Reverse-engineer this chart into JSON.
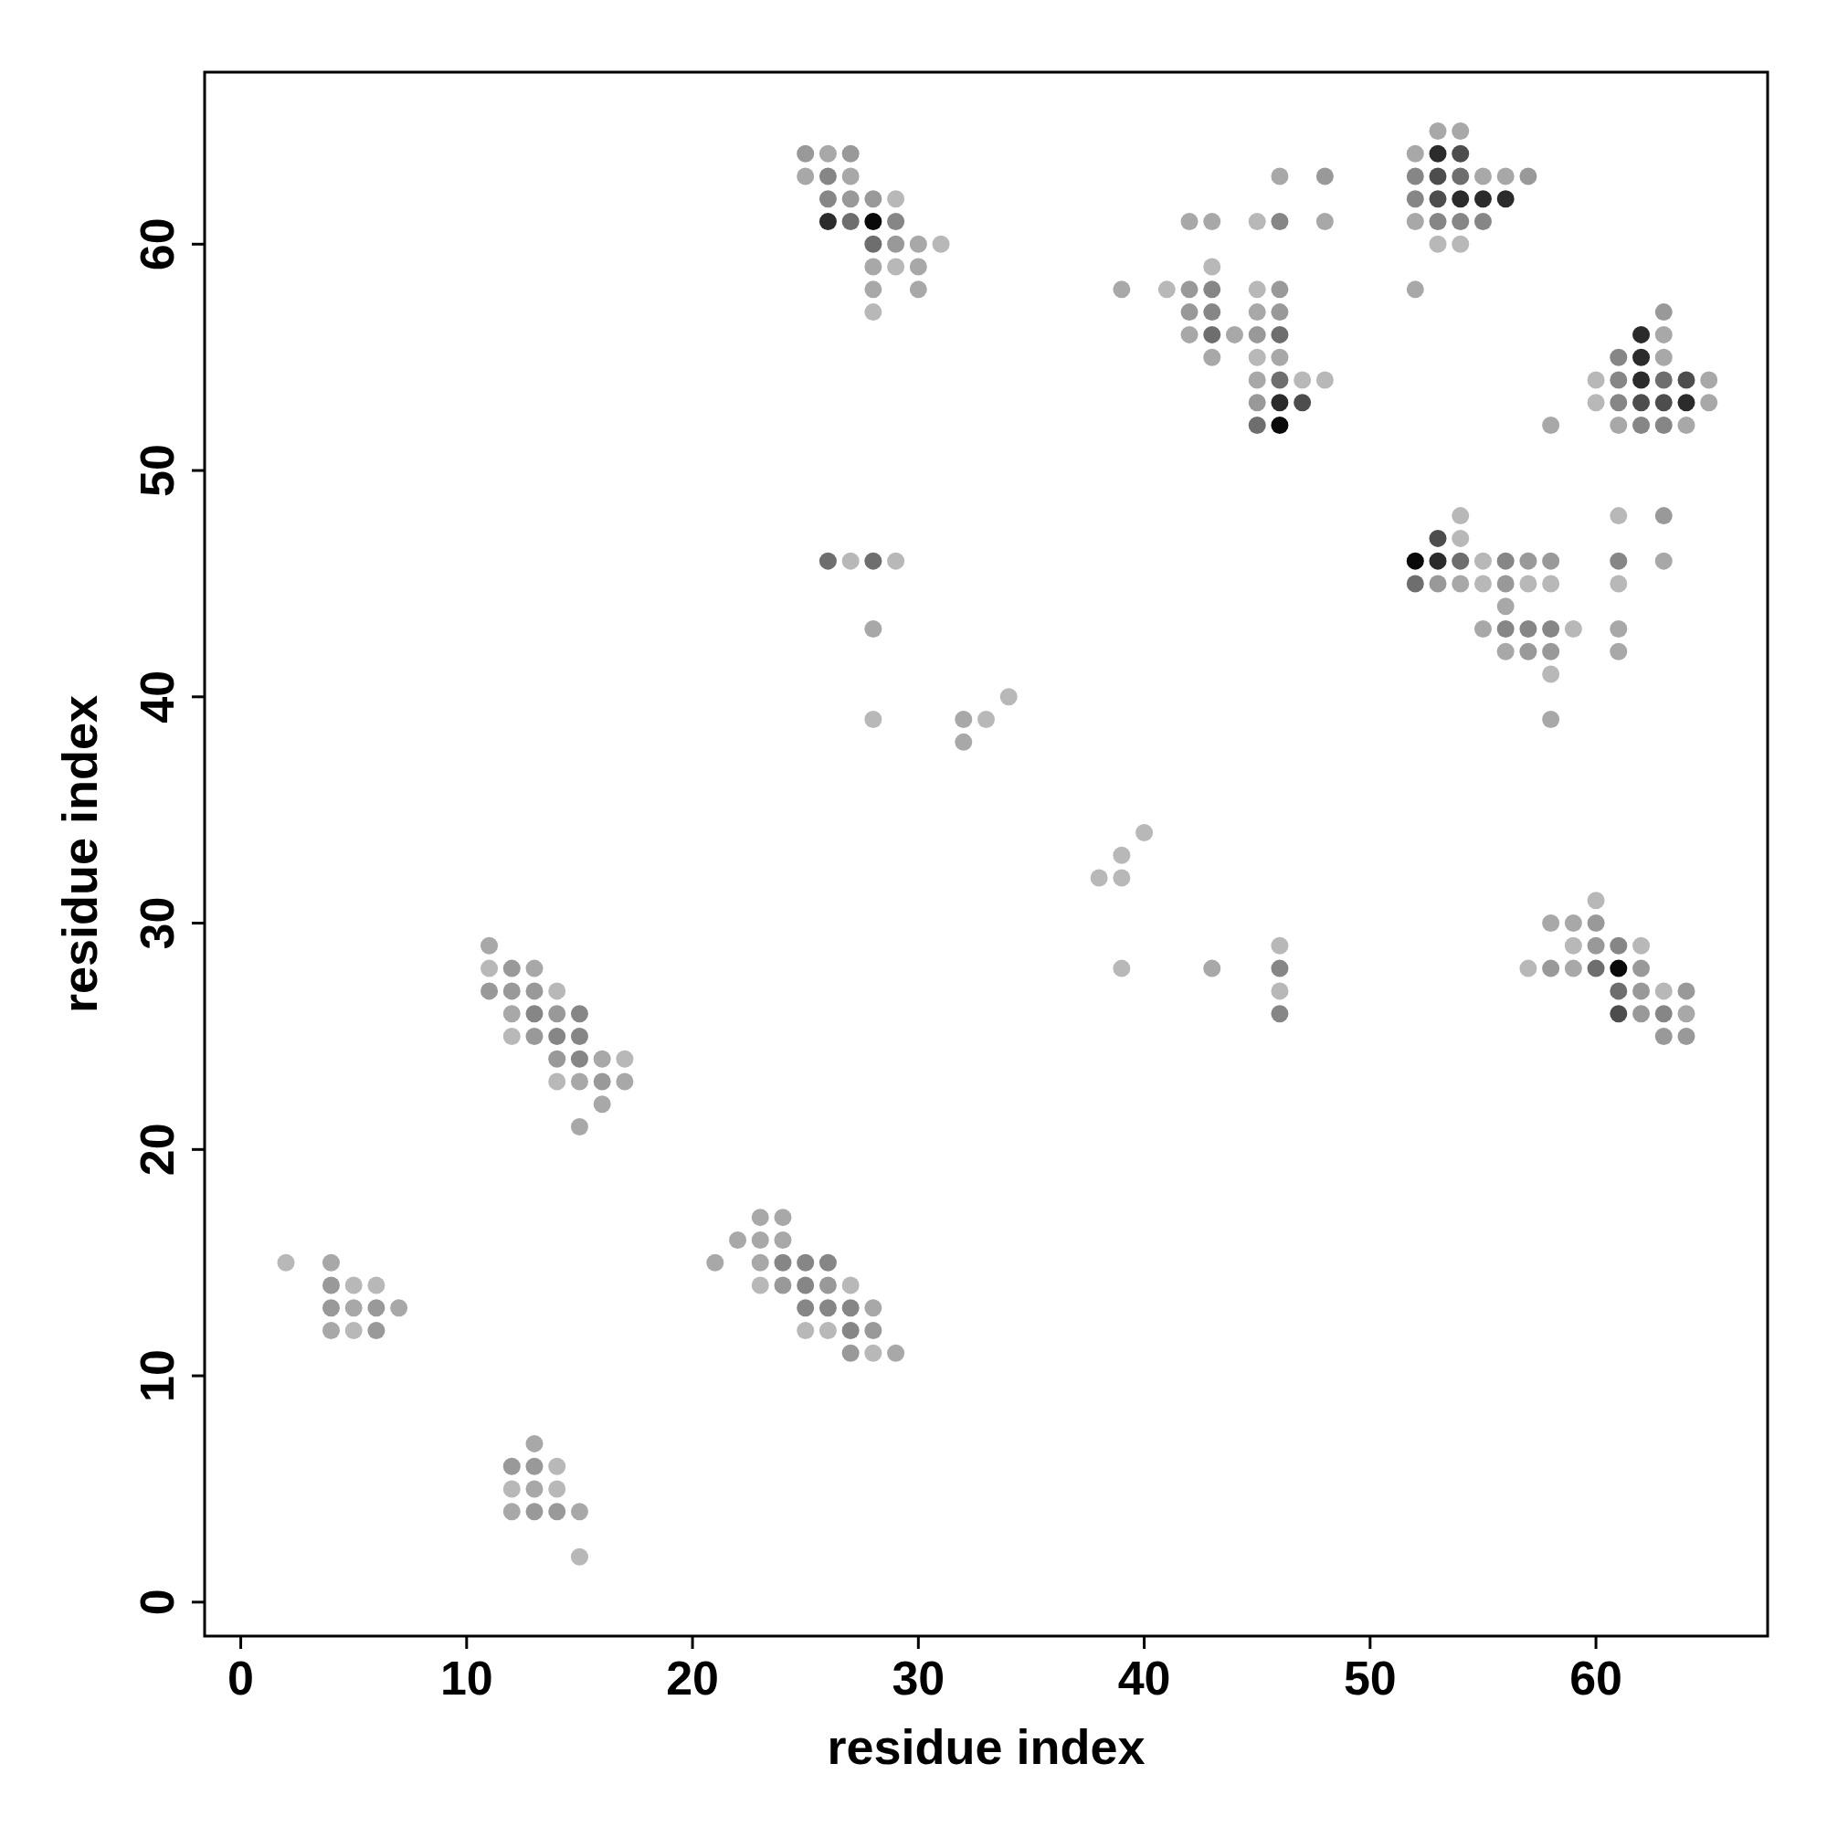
{
  "chart_data": {
    "type": "scatter",
    "xlabel": "residue index",
    "ylabel": "residue index",
    "xlim": [
      -1.6,
      67.6
    ],
    "ylim": [
      -1.5,
      67.6
    ],
    "xticks": [
      0,
      10,
      20,
      30,
      40,
      50,
      60
    ],
    "yticks": [
      0,
      10,
      20,
      30,
      40,
      50,
      60
    ],
    "marker": "circle",
    "series": [
      {
        "x": [
          25,
          26,
          27,
          25,
          26,
          27,
          26,
          27,
          28,
          29,
          26,
          27,
          28,
          29,
          28,
          29,
          30,
          31,
          28,
          29,
          30,
          28,
          30,
          28,
          26,
          27,
          28,
          29,
          28,
          28,
          32,
          33,
          34,
          32
        ],
        "values": [
          64,
          64,
          64,
          63,
          63,
          63,
          62,
          62,
          62,
          62,
          61,
          61,
          61,
          61,
          60,
          60,
          60,
          60,
          59,
          59,
          59,
          58,
          58,
          57,
          46,
          46,
          46,
          46,
          43,
          39,
          39,
          39,
          40,
          38
        ],
        "colors": [
          "#999999",
          "#a8a8a8",
          "#999999",
          "#a8a8a8",
          "#868686",
          "#a8a8a8",
          "#868686",
          "#999999",
          "#999999",
          "#b8b8b8",
          "#2b2b2b",
          "#6e6e6e",
          "#0a0a0a",
          "#868686",
          "#6e6e6e",
          "#999999",
          "#a8a8a8",
          "#b8b8b8",
          "#a8a8a8",
          "#b8b8b8",
          "#a8a8a8",
          "#a8a8a8",
          "#a8a8a8",
          "#b8b8b8",
          "#6e6e6e",
          "#b8b8b8",
          "#6e6e6e",
          "#b8b8b8",
          "#a8a8a8",
          "#b8b8b8",
          "#a8a8a8",
          "#b8b8b8",
          "#b8b8b8",
          "#a8a8a8"
        ]
      },
      {
        "x": [
          46,
          48,
          42,
          43,
          45,
          46,
          48,
          43,
          39,
          41,
          42,
          43,
          45,
          46,
          42,
          43,
          45,
          46,
          42,
          43,
          44,
          45,
          46,
          43,
          45,
          46,
          45,
          46,
          47,
          48,
          45,
          46,
          47,
          45,
          46
        ],
        "values": [
          63,
          63,
          61,
          61,
          61,
          61,
          61,
          59,
          58,
          58,
          58,
          58,
          58,
          58,
          57,
          57,
          57,
          57,
          56,
          56,
          56,
          56,
          56,
          55,
          55,
          55,
          54,
          54,
          54,
          54,
          53,
          53,
          53,
          52,
          52
        ],
        "colors": [
          "#a8a8a8",
          "#999999",
          "#a8a8a8",
          "#a8a8a8",
          "#b8b8b8",
          "#868686",
          "#a8a8a8",
          "#b8b8b8",
          "#a8a8a8",
          "#b8b8b8",
          "#999999",
          "#868686",
          "#b8b8b8",
          "#999999",
          "#999999",
          "#868686",
          "#a8a8a8",
          "#999999",
          "#a8a8a8",
          "#6e6e6e",
          "#a8a8a8",
          "#999999",
          "#6e6e6e",
          "#a8a8a8",
          "#b8b8b8",
          "#a8a8a8",
          "#a8a8a8",
          "#6e6e6e",
          "#b8b8b8",
          "#b8b8b8",
          "#999999",
          "#2b2b2b",
          "#4d4d4d",
          "#6e6e6e",
          "#0a0a0a"
        ]
      },
      {
        "x": [
          53,
          54,
          52,
          53,
          54,
          52,
          53,
          54,
          55,
          56,
          57,
          52,
          53,
          54,
          55,
          56,
          52,
          53,
          54,
          55,
          53,
          54,
          52
        ],
        "values": [
          65,
          65,
          64,
          64,
          64,
          63,
          63,
          63,
          63,
          63,
          63,
          62,
          62,
          62,
          62,
          62,
          61,
          61,
          61,
          61,
          60,
          60,
          58
        ],
        "colors": [
          "#a8a8a8",
          "#a8a8a8",
          "#a8a8a8",
          "#2b2b2b",
          "#4d4d4d",
          "#868686",
          "#4d4d4d",
          "#6e6e6e",
          "#a8a8a8",
          "#a8a8a8",
          "#999999",
          "#868686",
          "#4d4d4d",
          "#2b2b2b",
          "#2b2b2b",
          "#2b2b2b",
          "#a8a8a8",
          "#868686",
          "#868686",
          "#868686",
          "#b8b8b8",
          "#b8b8b8",
          "#a8a8a8"
        ]
      },
      {
        "x": [
          63,
          62,
          63,
          61,
          62,
          63,
          60,
          61,
          62,
          63,
          64,
          65,
          60,
          61,
          62,
          63,
          64,
          65,
          58,
          61,
          62,
          63,
          64
        ],
        "values": [
          57,
          56,
          56,
          55,
          55,
          55,
          54,
          54,
          54,
          54,
          54,
          54,
          53,
          53,
          53,
          53,
          53,
          53,
          52,
          52,
          52,
          52,
          52
        ],
        "colors": [
          "#999999",
          "#2b2b2b",
          "#a8a8a8",
          "#868686",
          "#2b2b2b",
          "#a8a8a8",
          "#b8b8b8",
          "#868686",
          "#2b2b2b",
          "#6e6e6e",
          "#4d4d4d",
          "#a8a8a8",
          "#b8b8b8",
          "#868686",
          "#4d4d4d",
          "#4d4d4d",
          "#2b2b2b",
          "#a8a8a8",
          "#a8a8a8",
          "#a8a8a8",
          "#868686",
          "#868686",
          "#a8a8a8"
        ]
      },
      {
        "x": [
          54,
          61,
          63,
          53,
          54,
          52,
          53,
          54,
          55,
          56,
          57,
          58,
          61,
          63,
          52,
          53,
          54,
          55,
          56,
          57,
          58,
          61,
          56,
          55,
          56,
          57,
          58,
          59,
          61,
          56,
          57,
          58,
          61,
          58,
          58
        ],
        "values": [
          48,
          48,
          48,
          47,
          47,
          46,
          46,
          46,
          46,
          46,
          46,
          46,
          46,
          46,
          45,
          45,
          45,
          45,
          45,
          45,
          45,
          45,
          44,
          43,
          43,
          43,
          43,
          43,
          43,
          42,
          42,
          42,
          42,
          41,
          39
        ],
        "colors": [
          "#b8b8b8",
          "#b8b8b8",
          "#999999",
          "#4d4d4d",
          "#b8b8b8",
          "#0a0a0a",
          "#2b2b2b",
          "#6e6e6e",
          "#b8b8b8",
          "#868686",
          "#999999",
          "#999999",
          "#868686",
          "#a8a8a8",
          "#6e6e6e",
          "#999999",
          "#a8a8a8",
          "#b8b8b8",
          "#999999",
          "#b8b8b8",
          "#b8b8b8",
          "#b8b8b8",
          "#a8a8a8",
          "#a8a8a8",
          "#868686",
          "#868686",
          "#868686",
          "#b8b8b8",
          "#a8a8a8",
          "#a8a8a8",
          "#999999",
          "#999999",
          "#a8a8a8",
          "#b8b8b8",
          "#a8a8a8"
        ]
      },
      {
        "x": [
          60,
          58,
          59,
          60,
          59,
          60,
          61,
          62,
          57,
          58,
          59,
          60,
          61,
          62,
          61,
          62,
          63,
          64,
          61,
          62,
          63,
          64,
          63,
          64
        ],
        "values": [
          31,
          30,
          30,
          30,
          29,
          29,
          29,
          29,
          28,
          28,
          28,
          28,
          28,
          28,
          27,
          27,
          27,
          27,
          26,
          26,
          26,
          26,
          25,
          25
        ],
        "colors": [
          "#b8b8b8",
          "#a8a8a8",
          "#a8a8a8",
          "#999999",
          "#b8b8b8",
          "#999999",
          "#868686",
          "#b8b8b8",
          "#b8b8b8",
          "#999999",
          "#a8a8a8",
          "#6e6e6e",
          "#0a0a0a",
          "#999999",
          "#6e6e6e",
          "#999999",
          "#b8b8b8",
          "#999999",
          "#4d4d4d",
          "#999999",
          "#868686",
          "#a8a8a8",
          "#999999",
          "#999999"
        ]
      },
      {
        "x": [
          40,
          39,
          38,
          39,
          39,
          43,
          46,
          46,
          46,
          46
        ],
        "values": [
          34,
          33,
          32,
          32,
          28,
          28,
          29,
          28,
          27,
          26
        ],
        "colors": [
          "#b8b8b8",
          "#b8b8b8",
          "#b8b8b8",
          "#b8b8b8",
          "#b8b8b8",
          "#a8a8a8",
          "#b8b8b8",
          "#868686",
          "#b8b8b8",
          "#868686"
        ]
      },
      {
        "x": [
          23,
          24,
          22,
          23,
          24,
          21,
          23,
          24,
          25,
          26,
          23,
          24,
          25,
          26,
          27,
          25,
          26,
          27,
          28,
          25,
          26,
          27,
          28,
          27,
          28,
          29
        ],
        "values": [
          17,
          17,
          16,
          16,
          16,
          15,
          15,
          15,
          15,
          15,
          14,
          14,
          14,
          14,
          14,
          13,
          13,
          13,
          13,
          12,
          12,
          12,
          12,
          11,
          11,
          11
        ],
        "colors": [
          "#a8a8a8",
          "#a8a8a8",
          "#a8a8a8",
          "#a8a8a8",
          "#a8a8a8",
          "#a8a8a8",
          "#a8a8a8",
          "#868686",
          "#868686",
          "#868686",
          "#b8b8b8",
          "#999999",
          "#868686",
          "#999999",
          "#b8b8b8",
          "#868686",
          "#868686",
          "#868686",
          "#a8a8a8",
          "#b8b8b8",
          "#b8b8b8",
          "#868686",
          "#999999",
          "#999999",
          "#b8b8b8",
          "#a8a8a8"
        ]
      },
      {
        "x": [
          11,
          11,
          12,
          13,
          11,
          12,
          13,
          14,
          12,
          13,
          14,
          15,
          12,
          13,
          14,
          15,
          14,
          15,
          16,
          17,
          14,
          15,
          16,
          17,
          16,
          15
        ],
        "values": [
          29,
          28,
          28,
          28,
          27,
          27,
          27,
          27,
          26,
          26,
          26,
          26,
          25,
          25,
          25,
          25,
          24,
          24,
          24,
          24,
          23,
          23,
          23,
          23,
          22,
          21
        ],
        "colors": [
          "#a8a8a8",
          "#b8b8b8",
          "#999999",
          "#a8a8a8",
          "#999999",
          "#999999",
          "#999999",
          "#b8b8b8",
          "#a8a8a8",
          "#868686",
          "#999999",
          "#868686",
          "#b8b8b8",
          "#999999",
          "#868686",
          "#868686",
          "#999999",
          "#868686",
          "#a8a8a8",
          "#b8b8b8",
          "#b8b8b8",
          "#a8a8a8",
          "#999999",
          "#a8a8a8",
          "#a8a8a8",
          "#a8a8a8"
        ]
      },
      {
        "x": [
          2,
          4,
          4,
          5,
          6,
          4,
          5,
          6,
          7,
          4,
          5,
          6
        ],
        "values": [
          15,
          15,
          14,
          14,
          14,
          13,
          13,
          13,
          13,
          12,
          12,
          12
        ],
        "colors": [
          "#b8b8b8",
          "#a8a8a8",
          "#999999",
          "#b8b8b8",
          "#b8b8b8",
          "#999999",
          "#a8a8a8",
          "#999999",
          "#a8a8a8",
          "#a8a8a8",
          "#b8b8b8",
          "#999999"
        ]
      },
      {
        "x": [
          13,
          12,
          13,
          14,
          12,
          13,
          14,
          12,
          13,
          14,
          15,
          15
        ],
        "values": [
          7,
          6,
          6,
          6,
          5,
          5,
          5,
          4,
          4,
          4,
          4,
          2
        ],
        "colors": [
          "#a8a8a8",
          "#999999",
          "#999999",
          "#b8b8b8",
          "#b8b8b8",
          "#a8a8a8",
          "#b8b8b8",
          "#a8a8a8",
          "#999999",
          "#999999",
          "#a8a8a8",
          "#b8b8b8"
        ]
      }
    ]
  }
}
